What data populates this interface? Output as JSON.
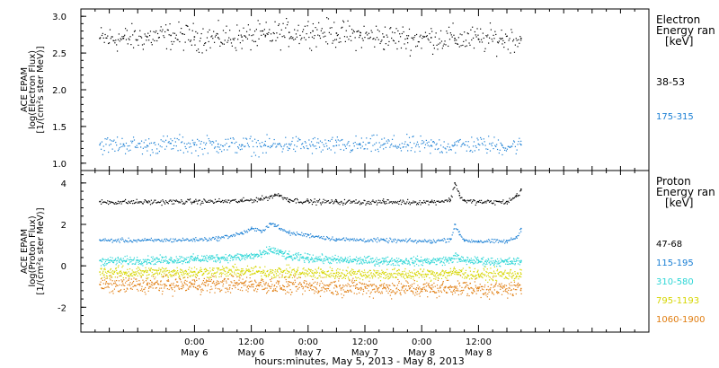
{
  "chart_data": [
    {
      "type": "scatter",
      "panel": "electron",
      "ylabel_lines": [
        "ACE EPAM",
        "log(Electron Flux)",
        "[1/(cm²s ster MeV)]"
      ],
      "ylim": [
        0.9,
        3.1
      ],
      "yticks": [
        1.0,
        1.5,
        2.0,
        2.5,
        3.0
      ],
      "ytick_labels": [
        "1.0",
        "1.5",
        "2.0",
        "2.5",
        "3.0"
      ],
      "legend_title": [
        "Electron",
        "Energy ran",
        "[keV]"
      ],
      "series": [
        {
          "name": "38-53",
          "color": "#000000",
          "x": [
            -20,
            -15,
            -10,
            -5,
            0,
            5,
            10,
            15,
            20,
            25,
            30,
            35,
            40,
            45,
            50,
            55,
            60,
            65,
            69
          ],
          "y": [
            2.7,
            2.7,
            2.72,
            2.74,
            2.72,
            2.71,
            2.72,
            2.74,
            2.78,
            2.8,
            2.77,
            2.74,
            2.72,
            2.7,
            2.71,
            2.7,
            2.69,
            2.7,
            2.7
          ]
        },
        {
          "name": "175-315",
          "color": "#1a7fd4",
          "x": [
            -20,
            -15,
            -10,
            -5,
            0,
            5,
            10,
            15,
            20,
            25,
            30,
            35,
            40,
            45,
            50,
            55,
            60,
            65,
            69
          ],
          "y": [
            1.25,
            1.26,
            1.24,
            1.27,
            1.25,
            1.26,
            1.25,
            1.24,
            1.26,
            1.25,
            1.24,
            1.25,
            1.26,
            1.25,
            1.24,
            1.25,
            1.26,
            1.24,
            1.25
          ]
        }
      ]
    },
    {
      "type": "scatter",
      "panel": "proton",
      "ylabel_lines": [
        "ACE EPAM",
        "log(Proton Flux)",
        "[1/(cm²s ster MeV)]"
      ],
      "ylim": [
        -3.2,
        4.6
      ],
      "yticks": [
        -2,
        0,
        2,
        4
      ],
      "ytick_labels": [
        "-2",
        "0",
        "2",
        "4"
      ],
      "legend_title": [
        "Proton",
        "Energy ran",
        "[keV]"
      ],
      "series": [
        {
          "name": "47-68",
          "color": "#000000",
          "x": [
            -20,
            -10,
            0,
            10,
            14,
            16,
            17,
            18,
            20,
            24,
            30,
            40,
            50,
            54,
            55,
            56,
            57,
            60,
            66,
            68,
            69
          ],
          "y": [
            3.1,
            3.1,
            3.12,
            3.15,
            3.25,
            3.35,
            3.45,
            3.4,
            3.2,
            3.12,
            3.1,
            3.1,
            3.1,
            3.2,
            4.0,
            3.4,
            3.15,
            3.1,
            3.1,
            3.4,
            3.7
          ]
        },
        {
          "name": "115-195",
          "color": "#1a7fd4",
          "x": [
            -20,
            -10,
            0,
            5,
            10,
            12,
            14,
            16,
            17,
            18,
            20,
            24,
            30,
            40,
            50,
            54,
            55,
            56,
            57,
            60,
            66,
            68,
            69
          ],
          "y": [
            1.25,
            1.25,
            1.28,
            1.35,
            1.6,
            1.8,
            1.7,
            2.05,
            2.0,
            1.8,
            1.6,
            1.5,
            1.3,
            1.25,
            1.2,
            1.3,
            2.0,
            1.5,
            1.25,
            1.2,
            1.2,
            1.4,
            1.8
          ]
        },
        {
          "name": "310-580",
          "color": "#2ed6d6",
          "x": [
            -20,
            -10,
            0,
            5,
            10,
            14,
            16,
            18,
            20,
            24,
            30,
            40,
            50,
            54,
            55,
            56,
            60,
            66,
            69
          ],
          "y": [
            0.25,
            0.28,
            0.35,
            0.4,
            0.45,
            0.55,
            0.8,
            0.65,
            0.45,
            0.4,
            0.3,
            0.25,
            0.25,
            0.3,
            0.5,
            0.3,
            0.25,
            0.2,
            0.25
          ]
        },
        {
          "name": "795-1193",
          "color": "#d6d600",
          "x": [
            -20,
            -10,
            0,
            10,
            20,
            30,
            40,
            50,
            55,
            60,
            69
          ],
          "y": [
            -0.3,
            -0.3,
            -0.28,
            -0.25,
            -0.3,
            -0.35,
            -0.38,
            -0.4,
            -0.3,
            -0.4,
            -0.4
          ]
        },
        {
          "name": "1060-1900",
          "color": "#e07d10",
          "x": [
            -20,
            -10,
            0,
            10,
            20,
            30,
            40,
            50,
            55,
            60,
            69
          ],
          "y": [
            -0.9,
            -0.9,
            -0.88,
            -0.85,
            -0.95,
            -1.0,
            -1.05,
            -1.1,
            -1.0,
            -1.1,
            -1.1
          ]
        }
      ]
    }
  ],
  "xaxis": {
    "xlim": [
      -24,
      96
    ],
    "ticks": [
      0,
      12,
      24,
      36,
      48,
      60
    ],
    "tick_time_labels": [
      "0:00",
      "12:00",
      "0:00",
      "12:00",
      "0:00",
      "12:00"
    ],
    "tick_date_labels": [
      "May 6",
      "May 6",
      "May 7",
      "May 7",
      "May 8",
      "May 8"
    ],
    "xlabel": "hours:minutes, May  5, 2013 - May  8, 2013"
  }
}
